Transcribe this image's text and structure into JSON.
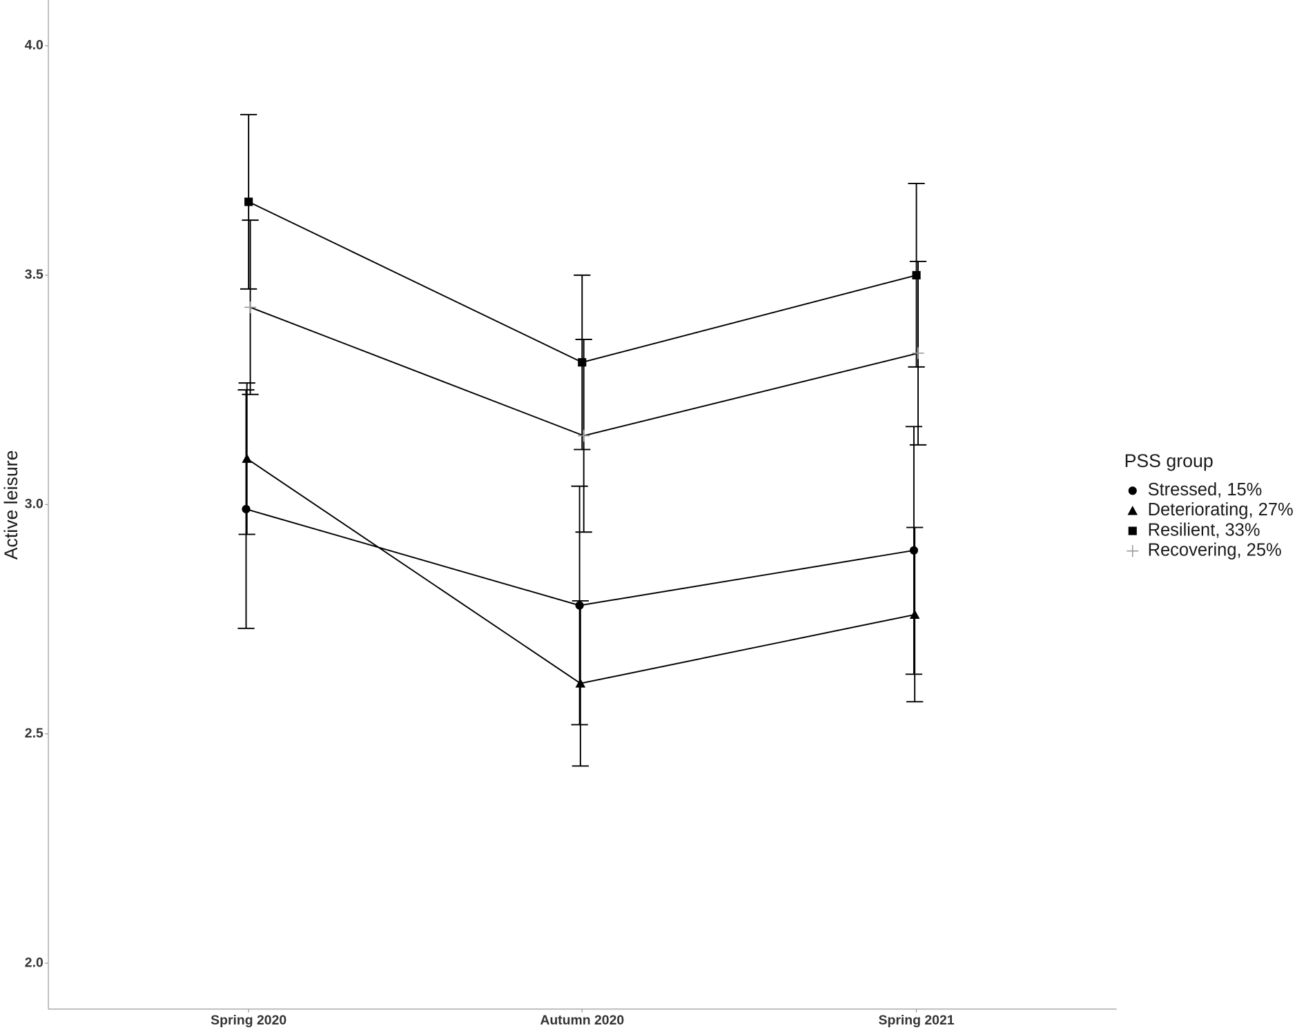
{
  "chart_data": {
    "type": "line",
    "y_label": "Active leisure",
    "legend_title": "PSS group",
    "legend_position": "right",
    "categories": [
      "Spring 2020",
      "Autumn 2020",
      "Spring 2021"
    ],
    "ylim": [
      1.9,
      4.1
    ],
    "yticks": [
      {
        "value": 2,
        "label": "2.0"
      },
      {
        "value": 2.5,
        "label": "2.5"
      },
      {
        "value": 3,
        "label": "3.0"
      },
      {
        "value": 3.5,
        "label": "3.5"
      },
      {
        "value": 4,
        "label": "4.0"
      }
    ],
    "grid": false,
    "series": [
      {
        "name": "Stressed, 15%",
        "color": "#000000",
        "marker": "circle",
        "marker_color": "#000000",
        "values": [
          2.99,
          2.78,
          2.9
        ],
        "errors": [
          0.26,
          0.26,
          0.27
        ]
      },
      {
        "name": "Deteriorating, 27%",
        "color": "#000000",
        "marker": "triangle",
        "marker_color": "#000000",
        "values": [
          3.1,
          2.61,
          2.76
        ],
        "errors": [
          0.165,
          0.18,
          0.19
        ]
      },
      {
        "name": "Resilient, 33%",
        "color": "#000000",
        "marker": "square",
        "marker_color": "#000000",
        "values": [
          3.66,
          3.31,
          3.5
        ],
        "errors": [
          0.19,
          0.19,
          0.2
        ]
      },
      {
        "name": "Recovering, 25%",
        "color": "#000000",
        "marker": "plus",
        "marker_color": "#999999",
        "values": [
          3.43,
          3.15,
          3.33
        ],
        "errors": [
          0.19,
          0.21,
          0.2
        ]
      }
    ]
  }
}
